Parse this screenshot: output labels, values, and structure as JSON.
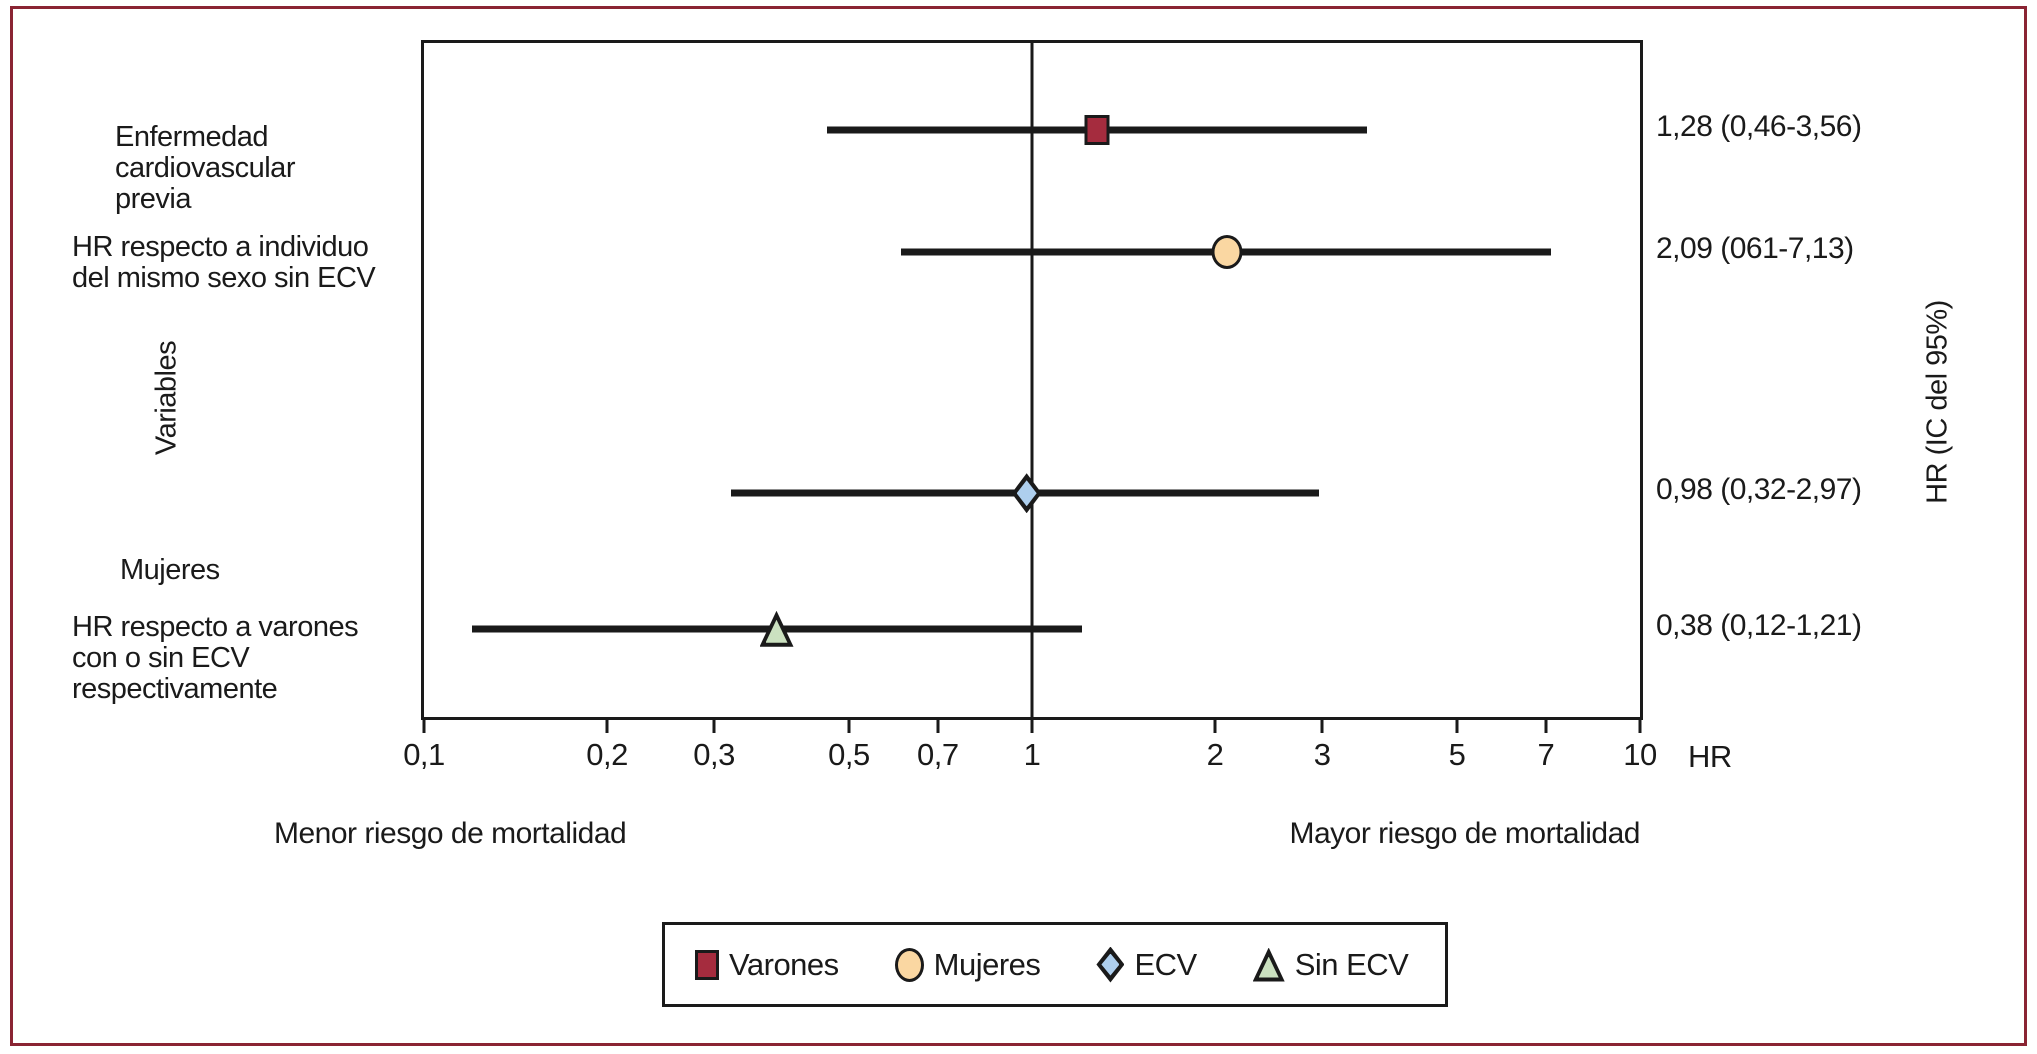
{
  "figure": {
    "border_color": "#8a2433",
    "background": "#ffffff"
  },
  "labels_left": {
    "group1": "Enfermedad\ncardiovascular\nprevia",
    "note1": "HR respecto a individuo\ndel mismo sexo sin ECV",
    "y_axis_title": "Variables",
    "group2": "Mujeres",
    "note2": "HR respecto a varones\ncon o sin ECV\nrespectivamente"
  },
  "labels_right": {
    "axis_title_rotated": "HR (IC del 95%)",
    "x_axis_title": "HR"
  },
  "x_axis": {
    "direction_left": "Menor riesgo de mortalidad",
    "direction_right": "Mayor riesgo de mortalidad"
  },
  "legend": {
    "items": [
      {
        "label": "Varones",
        "marker": "square",
        "color": "#a52c3e"
      },
      {
        "label": "Mujeres",
        "marker": "circle",
        "color": "#fad7a2"
      },
      {
        "label": "ECV",
        "marker": "diamond",
        "color": "#aecfee"
      },
      {
        "label": "Sin ECV",
        "marker": "triangle",
        "color": "#cbe1c0"
      }
    ]
  },
  "chart_data": {
    "type": "forest",
    "x_scale": "log",
    "xlim": [
      0.1,
      10
    ],
    "reference_line_x": 1,
    "x_ticks": [
      {
        "value": 0.1,
        "label": "0,1"
      },
      {
        "value": 0.2,
        "label": "0,2"
      },
      {
        "value": 0.3,
        "label": "0,3"
      },
      {
        "value": 0.5,
        "label": "0,5"
      },
      {
        "value": 0.7,
        "label": "0,7"
      },
      {
        "value": 1,
        "label": "1"
      },
      {
        "value": 2,
        "label": "2"
      },
      {
        "value": 3,
        "label": "3"
      },
      {
        "value": 5,
        "label": "5"
      },
      {
        "value": 7,
        "label": "7"
      },
      {
        "value": 10,
        "label": "10"
      }
    ],
    "series": [
      {
        "name": "Varones",
        "marker": "square",
        "color": "#a52c3e",
        "hr": 1.28,
        "ci_low": 0.46,
        "ci_high": 3.56,
        "display": "1,28 (0,46-3,56)",
        "y_frac": 0.129
      },
      {
        "name": "Mujeres",
        "marker": "circle",
        "color": "#fad7a2",
        "hr": 2.09,
        "ci_low": 0.61,
        "ci_high": 7.13,
        "display": "2,09 (061-7,13)",
        "y_frac": 0.31
      },
      {
        "name": "ECV",
        "marker": "diamond",
        "color": "#aecfee",
        "hr": 0.98,
        "ci_low": 0.32,
        "ci_high": 2.97,
        "display": "0,98 (0,32-2,97)",
        "y_frac": 0.668
      },
      {
        "name": "Sin ECV",
        "marker": "triangle",
        "color": "#cbe1c0",
        "hr": 0.38,
        "ci_low": 0.12,
        "ci_high": 1.21,
        "display": "0,38 (0,12-1,21)",
        "y_frac": 0.869
      }
    ]
  }
}
